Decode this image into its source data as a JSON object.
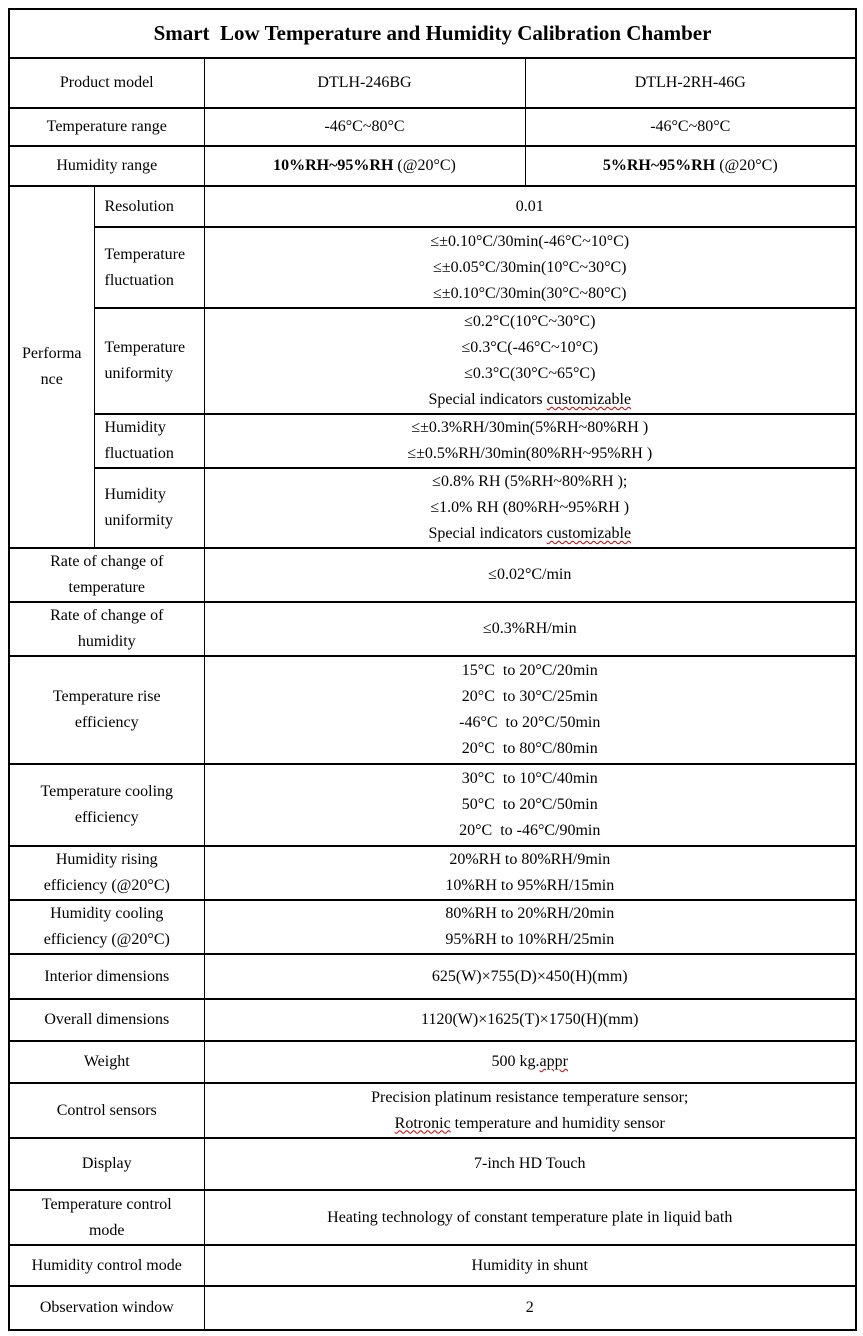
{
  "title": "Smart  Low Temperature and Humidity Calibration Chamber",
  "rows": {
    "product_model": {
      "label": "Product model",
      "v1": "DTLH-246BG",
      "v2": "DTLH-2RH-46G"
    },
    "temperature_range": {
      "label": "Temperature range",
      "v1": "-46°C~80°C",
      "v2": "-46°C~80°C"
    },
    "humidity_range": {
      "label": "Humidity range",
      "v1_bold": "10%RH~95%RH",
      "v1_rest": " (@20°C)",
      "v2_bold": "5%RH~95%RH",
      "v2_rest": " (@20°C)"
    }
  },
  "performance": {
    "label": "Performa\nnce",
    "rows": [
      {
        "label": "Resolution",
        "value": "0.01"
      },
      {
        "label": "Temperature\nfluctuation",
        "value": "≤±0.10°C/30min(-46°C~10°C)\n≤±0.05°C/30min(10°C~30°C)\n≤±0.10°C/30min(30°C~80°C)"
      },
      {
        "label": "Temperature\nuniformity",
        "value": "≤0.2°C(10°C~30°C)\n≤0.3°C(-46°C~10°C)\n≤0.3°C(30°C~65°C)\nSpecial indicators customizable"
      },
      {
        "label": "Humidity\nfluctuation",
        "value": "≤±0.3%RH/30min(5%RH~80%RH )\n≤±0.5%RH/30min(80%RH~95%RH )"
      },
      {
        "label": "Humidity\nuniformity",
        "value": "≤0.8% RH (5%RH~80%RH );\n≤1.0% RH (80%RH~95%RH )\nSpecial indicators customizable"
      }
    ]
  },
  "spec_rows": [
    {
      "id": "rate-of-change-of-temperature",
      "label": "Rate of change of\ntemperature",
      "value": "≤0.02°C/min"
    },
    {
      "id": "rate-of-change-of-humidity",
      "label": "Rate of change of\nhumidity",
      "value": "≤0.3%RH/min"
    },
    {
      "id": "temperature-rise-efficiency",
      "label": "Temperature rise\nefficiency",
      "value": "15°C  to 20°C/20min\n20°C  to 30°C/25min\n-46°C  to 20°C/50min\n20°C  to 80°C/80min"
    },
    {
      "id": "temperature-cooling-efficiency",
      "label": "Temperature cooling\nefficiency",
      "value": "30°C  to 10°C/40min\n50°C  to 20°C/50min\n20°C  to -46°C/90min"
    },
    {
      "id": "humidity-rising-efficiency",
      "label": "Humidity rising\nefficiency (@20°C)",
      "value": "20%RH to 80%RH/9min\n10%RH to 95%RH/15min"
    },
    {
      "id": "humidity-cooling-efficiency",
      "label": "Humidity cooling\nefficiency (@20°C)",
      "value": "80%RH to 20%RH/20min\n95%RH to 10%RH/25min"
    },
    {
      "id": "interior-dimensions",
      "label": "Interior dimensions",
      "value": "625(W)×755(D)×450(H)(mm)"
    },
    {
      "id": "overall-dimensions",
      "label": "Overall dimensions",
      "value": "1120(W)×1625(T)×1750(H)(mm)"
    },
    {
      "id": "weight",
      "label": "Weight",
      "value": "500 kg.appr"
    },
    {
      "id": "control-sensors",
      "label": "Control sensors",
      "value": "Precision platinum resistance temperature sensor;\nRotronic temperature and humidity sensor"
    },
    {
      "id": "display",
      "label": "Display",
      "value": "7-inch HD Touch"
    },
    {
      "id": "temperature-control-mode",
      "label": "Temperature control\nmode",
      "value": "Heating technology of constant temperature plate in liquid bath"
    },
    {
      "id": "humidity-control-mode",
      "label": "Humidity control mode",
      "value": "Humidity in shunt"
    },
    {
      "id": "observation-window",
      "label": "Observation window",
      "value": "2"
    }
  ],
  "misspelled_words": [
    "customizable",
    "appr",
    "Rotronic"
  ],
  "styles": {
    "squiggle_color": "#c00000",
    "border_color": "#000000",
    "background": "#ffffff"
  }
}
